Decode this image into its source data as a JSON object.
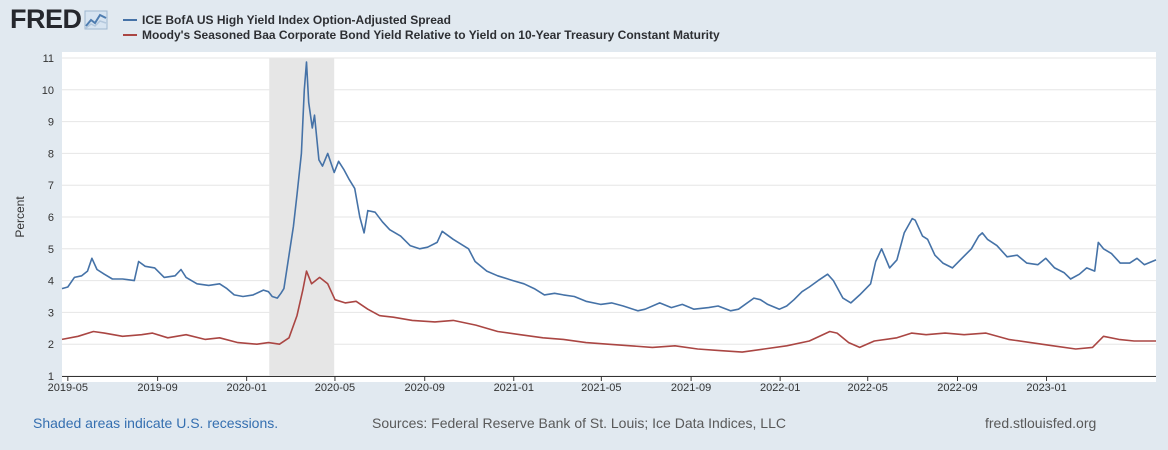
{
  "header": {
    "logo_text": "FRED",
    "logo_icon": "fred-chart-icon"
  },
  "colors": {
    "background": "#e1e9f0",
    "plot_background": "#ffffff",
    "recession_shade": "#e6e6e6",
    "series_1": "#4572a7",
    "series_2": "#aa4643"
  },
  "footer": {
    "left": "Shaded areas indicate U.S. recessions.",
    "middle": "Sources: Federal Reserve Bank of St. Louis; Ice Data Indices, LLC",
    "right": "fred.stlouisfed.org"
  },
  "chart_data": {
    "type": "line",
    "title": "",
    "xlabel": "",
    "ylabel": "Percent",
    "ylim": [
      1,
      11
    ],
    "yticks": [
      1,
      2,
      3,
      4,
      5,
      6,
      7,
      8,
      9,
      10,
      11
    ],
    "xlim": [
      "2019-04-23",
      "2023-05-31"
    ],
    "xticks": [
      "2019-05",
      "2019-09",
      "2020-01",
      "2020-05",
      "2020-09",
      "2021-01",
      "2021-05",
      "2021-09",
      "2022-01",
      "2022-05",
      "2022-09",
      "2023-01"
    ],
    "grid": "horizontal",
    "legend_position": "top",
    "recessions": [
      {
        "start": "2020-02-01",
        "end": "2020-04-30"
      }
    ],
    "series": [
      {
        "name": "ICE BofA US High Yield Index Option-Adjusted Spread",
        "color": "#4572a7",
        "points": [
          [
            "2019-04-23",
            3.75
          ],
          [
            "2019-05-01",
            3.8
          ],
          [
            "2019-05-10",
            4.1
          ],
          [
            "2019-05-20",
            4.15
          ],
          [
            "2019-05-28",
            4.3
          ],
          [
            "2019-06-03",
            4.7
          ],
          [
            "2019-06-10",
            4.35
          ],
          [
            "2019-06-20",
            4.2
          ],
          [
            "2019-07-01",
            4.05
          ],
          [
            "2019-07-15",
            4.05
          ],
          [
            "2019-07-31",
            4.0
          ],
          [
            "2019-08-06",
            4.6
          ],
          [
            "2019-08-15",
            4.45
          ],
          [
            "2019-08-28",
            4.4
          ],
          [
            "2019-09-10",
            4.1
          ],
          [
            "2019-09-25",
            4.15
          ],
          [
            "2019-10-03",
            4.35
          ],
          [
            "2019-10-10",
            4.1
          ],
          [
            "2019-10-25",
            3.9
          ],
          [
            "2019-11-10",
            3.85
          ],
          [
            "2019-11-25",
            3.9
          ],
          [
            "2019-12-05",
            3.75
          ],
          [
            "2019-12-15",
            3.55
          ],
          [
            "2019-12-27",
            3.5
          ],
          [
            "2020-01-10",
            3.55
          ],
          [
            "2020-01-24",
            3.7
          ],
          [
            "2020-01-31",
            3.65
          ],
          [
            "2020-02-05",
            3.5
          ],
          [
            "2020-02-12",
            3.45
          ],
          [
            "2020-02-17",
            3.6
          ],
          [
            "2020-02-21",
            3.75
          ],
          [
            "2020-02-28",
            4.8
          ],
          [
            "2020-03-05",
            5.7
          ],
          [
            "2020-03-10",
            6.7
          ],
          [
            "2020-03-16",
            8.0
          ],
          [
            "2020-03-20",
            10.0
          ],
          [
            "2020-03-23",
            10.87
          ],
          [
            "2020-03-26",
            9.6
          ],
          [
            "2020-03-31",
            8.8
          ],
          [
            "2020-04-03",
            9.2
          ],
          [
            "2020-04-09",
            7.8
          ],
          [
            "2020-04-14",
            7.6
          ],
          [
            "2020-04-21",
            8.0
          ],
          [
            "2020-04-30",
            7.4
          ],
          [
            "2020-05-06",
            7.75
          ],
          [
            "2020-05-13",
            7.5
          ],
          [
            "2020-05-20",
            7.2
          ],
          [
            "2020-05-28",
            6.9
          ],
          [
            "2020-06-04",
            6.0
          ],
          [
            "2020-06-10",
            5.5
          ],
          [
            "2020-06-15",
            6.2
          ],
          [
            "2020-06-25",
            6.15
          ],
          [
            "2020-07-05",
            5.85
          ],
          [
            "2020-07-15",
            5.6
          ],
          [
            "2020-07-30",
            5.4
          ],
          [
            "2020-08-12",
            5.1
          ],
          [
            "2020-08-25",
            5.0
          ],
          [
            "2020-09-05",
            5.05
          ],
          [
            "2020-09-18",
            5.2
          ],
          [
            "2020-09-25",
            5.55
          ],
          [
            "2020-10-10",
            5.3
          ],
          [
            "2020-10-31",
            5.0
          ],
          [
            "2020-11-09",
            4.6
          ],
          [
            "2020-11-25",
            4.3
          ],
          [
            "2020-12-10",
            4.15
          ],
          [
            "2020-12-31",
            4.0
          ],
          [
            "2021-01-15",
            3.9
          ],
          [
            "2021-01-29",
            3.75
          ],
          [
            "2021-02-12",
            3.55
          ],
          [
            "2021-02-26",
            3.6
          ],
          [
            "2021-03-10",
            3.55
          ],
          [
            "2021-03-25",
            3.5
          ],
          [
            "2021-04-10",
            3.35
          ],
          [
            "2021-04-30",
            3.25
          ],
          [
            "2021-05-15",
            3.3
          ],
          [
            "2021-05-31",
            3.2
          ],
          [
            "2021-06-20",
            3.05
          ],
          [
            "2021-06-30",
            3.1
          ],
          [
            "2021-07-20",
            3.3
          ],
          [
            "2021-08-05",
            3.15
          ],
          [
            "2021-08-20",
            3.25
          ],
          [
            "2021-09-05",
            3.1
          ],
          [
            "2021-09-25",
            3.15
          ],
          [
            "2021-10-08",
            3.2
          ],
          [
            "2021-10-25",
            3.05
          ],
          [
            "2021-11-05",
            3.1
          ],
          [
            "2021-11-26",
            3.45
          ],
          [
            "2021-12-05",
            3.4
          ],
          [
            "2021-12-15",
            3.25
          ],
          [
            "2021-12-31",
            3.1
          ],
          [
            "2022-01-10",
            3.2
          ],
          [
            "2022-01-20",
            3.4
          ],
          [
            "2022-01-31",
            3.65
          ],
          [
            "2022-02-10",
            3.8
          ],
          [
            "2022-02-22",
            4.0
          ],
          [
            "2022-03-07",
            4.2
          ],
          [
            "2022-03-15",
            4.0
          ],
          [
            "2022-03-28",
            3.45
          ],
          [
            "2022-04-08",
            3.3
          ],
          [
            "2022-04-20",
            3.55
          ],
          [
            "2022-05-05",
            3.9
          ],
          [
            "2022-05-12",
            4.6
          ],
          [
            "2022-05-20",
            5.0
          ],
          [
            "2022-05-31",
            4.4
          ],
          [
            "2022-06-10",
            4.65
          ],
          [
            "2022-06-20",
            5.5
          ],
          [
            "2022-07-01",
            5.95
          ],
          [
            "2022-07-05",
            5.9
          ],
          [
            "2022-07-15",
            5.4
          ],
          [
            "2022-07-22",
            5.3
          ],
          [
            "2022-08-01",
            4.8
          ],
          [
            "2022-08-12",
            4.55
          ],
          [
            "2022-08-25",
            4.4
          ],
          [
            "2022-09-07",
            4.7
          ],
          [
            "2022-09-20",
            5.0
          ],
          [
            "2022-09-30",
            5.4
          ],
          [
            "2022-10-05",
            5.5
          ],
          [
            "2022-10-12",
            5.3
          ],
          [
            "2022-10-25",
            5.1
          ],
          [
            "2022-11-08",
            4.75
          ],
          [
            "2022-11-22",
            4.8
          ],
          [
            "2022-12-05",
            4.55
          ],
          [
            "2022-12-20",
            4.5
          ],
          [
            "2022-12-31",
            4.7
          ],
          [
            "2023-01-12",
            4.4
          ],
          [
            "2023-01-25",
            4.25
          ],
          [
            "2023-02-03",
            4.05
          ],
          [
            "2023-02-15",
            4.2
          ],
          [
            "2023-02-25",
            4.4
          ],
          [
            "2023-03-08",
            4.3
          ],
          [
            "2023-03-13",
            5.2
          ],
          [
            "2023-03-20",
            5.0
          ],
          [
            "2023-03-31",
            4.85
          ],
          [
            "2023-04-12",
            4.55
          ],
          [
            "2023-04-25",
            4.55
          ],
          [
            "2023-05-05",
            4.7
          ],
          [
            "2023-05-15",
            4.5
          ],
          [
            "2023-05-31",
            4.65
          ]
        ]
      },
      {
        "name": "Moody's Seasoned Baa Corporate Bond Yield Relative to Yield on 10-Year Treasury Constant Maturity",
        "color": "#aa4643",
        "points": [
          [
            "2019-04-23",
            2.15
          ],
          [
            "2019-05-15",
            2.25
          ],
          [
            "2019-06-05",
            2.4
          ],
          [
            "2019-06-20",
            2.35
          ],
          [
            "2019-07-15",
            2.25
          ],
          [
            "2019-08-10",
            2.3
          ],
          [
            "2019-08-25",
            2.35
          ],
          [
            "2019-09-15",
            2.2
          ],
          [
            "2019-10-10",
            2.3
          ],
          [
            "2019-11-05",
            2.15
          ],
          [
            "2019-11-25",
            2.2
          ],
          [
            "2019-12-20",
            2.05
          ],
          [
            "2020-01-15",
            2.0
          ],
          [
            "2020-01-31",
            2.05
          ],
          [
            "2020-02-15",
            2.0
          ],
          [
            "2020-02-28",
            2.2
          ],
          [
            "2020-03-10",
            2.9
          ],
          [
            "2020-03-18",
            3.7
          ],
          [
            "2020-03-23",
            4.3
          ],
          [
            "2020-03-30",
            3.9
          ],
          [
            "2020-04-10",
            4.1
          ],
          [
            "2020-04-21",
            3.9
          ],
          [
            "2020-05-01",
            3.4
          ],
          [
            "2020-05-15",
            3.3
          ],
          [
            "2020-05-30",
            3.35
          ],
          [
            "2020-06-15",
            3.1
          ],
          [
            "2020-07-01",
            2.9
          ],
          [
            "2020-07-20",
            2.85
          ],
          [
            "2020-08-15",
            2.75
          ],
          [
            "2020-09-15",
            2.7
          ],
          [
            "2020-10-10",
            2.75
          ],
          [
            "2020-11-10",
            2.6
          ],
          [
            "2020-12-10",
            2.4
          ],
          [
            "2021-01-10",
            2.3
          ],
          [
            "2021-02-10",
            2.2
          ],
          [
            "2021-03-10",
            2.15
          ],
          [
            "2021-04-10",
            2.05
          ],
          [
            "2021-05-10",
            2.0
          ],
          [
            "2021-06-10",
            1.95
          ],
          [
            "2021-07-10",
            1.9
          ],
          [
            "2021-08-10",
            1.95
          ],
          [
            "2021-09-10",
            1.85
          ],
          [
            "2021-10-10",
            1.8
          ],
          [
            "2021-11-10",
            1.75
          ],
          [
            "2021-12-10",
            1.85
          ],
          [
            "2022-01-10",
            1.95
          ],
          [
            "2022-02-10",
            2.1
          ],
          [
            "2022-03-10",
            2.4
          ],
          [
            "2022-03-20",
            2.35
          ],
          [
            "2022-04-05",
            2.05
          ],
          [
            "2022-04-20",
            1.9
          ],
          [
            "2022-05-10",
            2.1
          ],
          [
            "2022-06-10",
            2.2
          ],
          [
            "2022-06-30",
            2.35
          ],
          [
            "2022-07-20",
            2.3
          ],
          [
            "2022-08-15",
            2.35
          ],
          [
            "2022-09-10",
            2.3
          ],
          [
            "2022-10-10",
            2.35
          ],
          [
            "2022-11-10",
            2.15
          ],
          [
            "2022-12-10",
            2.05
          ],
          [
            "2023-01-10",
            1.95
          ],
          [
            "2023-02-10",
            1.85
          ],
          [
            "2023-03-05",
            1.9
          ],
          [
            "2023-03-20",
            2.25
          ],
          [
            "2023-04-10",
            2.15
          ],
          [
            "2023-05-01",
            2.1
          ],
          [
            "2023-05-31",
            2.1
          ]
        ]
      }
    ]
  }
}
